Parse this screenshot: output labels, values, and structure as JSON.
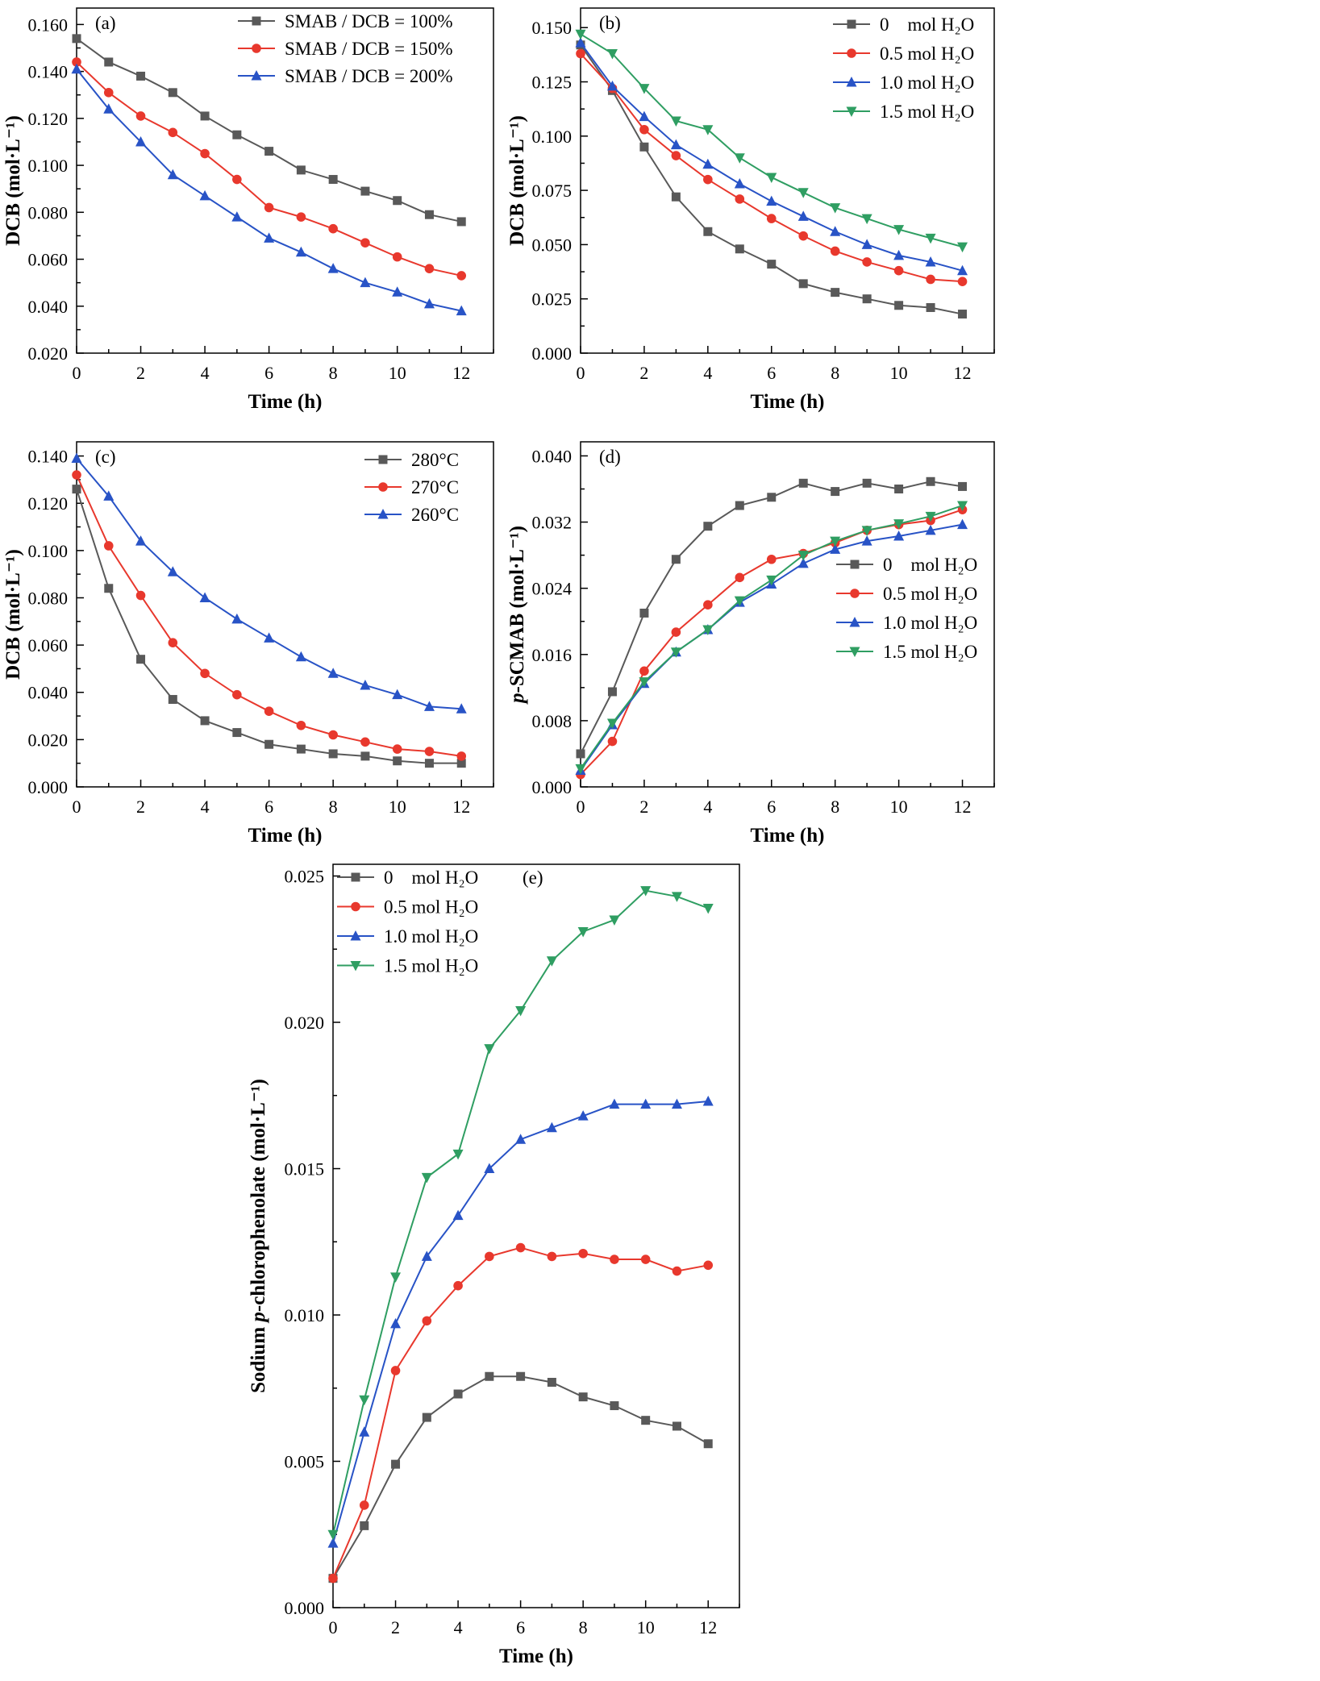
{
  "figure": {
    "background": "#ffffff",
    "text_color": "#000000"
  },
  "chart_data": [
    {
      "id": "a",
      "panel_label": "(a)",
      "type": "line",
      "title": "",
      "xlabel": "Time (h)",
      "ylabel": "DCB (mol·L⁻¹)",
      "ylabel_parts": [
        {
          "t": "DCB (mol·L⁻¹)",
          "i": false
        }
      ],
      "x": [
        0,
        1,
        2,
        3,
        4,
        5,
        6,
        7,
        8,
        9,
        10,
        11,
        12
      ],
      "xlim": [
        0,
        13
      ],
      "xticks": [
        0,
        2,
        4,
        6,
        8,
        10,
        12
      ],
      "xminor": 1,
      "ylim": [
        0.02,
        0.167
      ],
      "yticks": [
        0.02,
        0.04,
        0.06,
        0.08,
        0.1,
        0.12,
        0.14,
        0.16
      ],
      "yminor": 0.01,
      "ytick_decimals": 3,
      "grid": false,
      "legend_position": "inside-top-right",
      "series": [
        {
          "name": "SMAB / DCB = 100%",
          "color": "#595959",
          "marker": "square",
          "values": [
            0.154,
            0.144,
            0.138,
            0.131,
            0.121,
            0.113,
            0.106,
            0.098,
            0.094,
            0.089,
            0.085,
            0.079,
            0.076
          ]
        },
        {
          "name": "SMAB / DCB = 150%",
          "color": "#e8382d",
          "marker": "circle",
          "values": [
            0.144,
            0.131,
            0.121,
            0.114,
            0.105,
            0.094,
            0.082,
            0.078,
            0.073,
            0.067,
            0.061,
            0.056,
            0.053
          ]
        },
        {
          "name": "SMAB / DCB = 200%",
          "color": "#2853c6",
          "marker": "triangle-up",
          "values": [
            0.141,
            0.124,
            0.11,
            0.096,
            0.087,
            0.078,
            0.069,
            0.063,
            0.056,
            0.05,
            0.046,
            0.041,
            0.038
          ]
        }
      ]
    },
    {
      "id": "b",
      "panel_label": "(b)",
      "type": "line",
      "title": "",
      "xlabel": "Time (h)",
      "ylabel": "DCB (mol·L⁻¹)",
      "ylabel_parts": [
        {
          "t": "DCB (mol·L⁻¹)",
          "i": false
        }
      ],
      "x": [
        0,
        1,
        2,
        3,
        4,
        5,
        6,
        7,
        8,
        9,
        10,
        11,
        12
      ],
      "xlim": [
        0,
        13
      ],
      "xticks": [
        0,
        2,
        4,
        6,
        8,
        10,
        12
      ],
      "xminor": 1,
      "ylim": [
        0.0,
        0.159
      ],
      "yticks": [
        0.0,
        0.025,
        0.05,
        0.075,
        0.1,
        0.125,
        0.15
      ],
      "yminor": 0.0125,
      "ytick_decimals": 3,
      "grid": false,
      "legend_position": "inside-top-right",
      "series": [
        {
          "name": "0    mol H₂O",
          "color": "#595959",
          "marker": "square",
          "values": [
            0.142,
            0.121,
            0.095,
            0.072,
            0.056,
            0.048,
            0.041,
            0.032,
            0.028,
            0.025,
            0.022,
            0.021,
            0.018
          ]
        },
        {
          "name": "0.5 mol H₂O",
          "color": "#e8382d",
          "marker": "circle",
          "values": [
            0.138,
            0.122,
            0.103,
            0.091,
            0.08,
            0.071,
            0.062,
            0.054,
            0.047,
            0.042,
            0.038,
            0.034,
            0.033
          ]
        },
        {
          "name": "1.0 mol H₂O",
          "color": "#2853c6",
          "marker": "triangle-up",
          "values": [
            0.143,
            0.123,
            0.109,
            0.096,
            0.087,
            0.078,
            0.07,
            0.063,
            0.056,
            0.05,
            0.045,
            0.042,
            0.038
          ]
        },
        {
          "name": "1.5 mol H₂O",
          "color": "#2f9e62",
          "marker": "triangle-down",
          "values": [
            0.147,
            0.138,
            0.122,
            0.107,
            0.103,
            0.09,
            0.081,
            0.074,
            0.067,
            0.062,
            0.057,
            0.053,
            0.049
          ]
        }
      ]
    },
    {
      "id": "c",
      "panel_label": "(c)",
      "type": "line",
      "title": "",
      "xlabel": "Time (h)",
      "ylabel": "DCB (mol·L⁻¹)",
      "ylabel_parts": [
        {
          "t": "DCB (mol·L⁻¹)",
          "i": false
        }
      ],
      "x": [
        0,
        1,
        2,
        3,
        4,
        5,
        6,
        7,
        8,
        9,
        10,
        11,
        12
      ],
      "xlim": [
        0,
        13
      ],
      "xticks": [
        0,
        2,
        4,
        6,
        8,
        10,
        12
      ],
      "xminor": 1,
      "ylim": [
        0.0,
        0.146
      ],
      "yticks": [
        0.0,
        0.02,
        0.04,
        0.06,
        0.08,
        0.1,
        0.12,
        0.14
      ],
      "yminor": 0.01,
      "ytick_decimals": 3,
      "grid": false,
      "legend_position": "inside-top-right",
      "series": [
        {
          "name": "280°C",
          "color": "#595959",
          "marker": "square",
          "values": [
            0.126,
            0.084,
            0.054,
            0.037,
            0.028,
            0.023,
            0.018,
            0.016,
            0.014,
            0.013,
            0.011,
            0.01,
            0.01
          ]
        },
        {
          "name": "270°C",
          "color": "#e8382d",
          "marker": "circle",
          "values": [
            0.132,
            0.102,
            0.081,
            0.061,
            0.048,
            0.039,
            0.032,
            0.026,
            0.022,
            0.019,
            0.016,
            0.015,
            0.013
          ]
        },
        {
          "name": "260°C",
          "color": "#2853c6",
          "marker": "triangle-up",
          "values": [
            0.139,
            0.123,
            0.104,
            0.091,
            0.08,
            0.071,
            0.063,
            0.055,
            0.048,
            0.043,
            0.039,
            0.034,
            0.033
          ]
        }
      ]
    },
    {
      "id": "d",
      "panel_label": "(d)",
      "type": "line",
      "title": "",
      "xlabel": "Time (h)",
      "ylabel": "p-SCMAB (mol·L⁻¹)",
      "ylabel_parts": [
        {
          "t": "p",
          "i": true
        },
        {
          "t": "-SCMAB (mol·L⁻¹)",
          "i": false
        }
      ],
      "x": [
        0,
        1,
        2,
        3,
        4,
        5,
        6,
        7,
        8,
        9,
        10,
        11,
        12
      ],
      "xlim": [
        0,
        13
      ],
      "xticks": [
        0,
        2,
        4,
        6,
        8,
        10,
        12
      ],
      "xminor": 1,
      "ylim": [
        0.0,
        0.0417
      ],
      "yticks": [
        0.0,
        0.008,
        0.016,
        0.024,
        0.032,
        0.04
      ],
      "yminor": 0.004,
      "ytick_decimals": 3,
      "grid": false,
      "legend_position": "inside-middle-right",
      "series": [
        {
          "name": "0    mol H₂O",
          "color": "#595959",
          "marker": "square",
          "values": [
            0.004,
            0.0115,
            0.021,
            0.0275,
            0.0315,
            0.034,
            0.035,
            0.0367,
            0.0357,
            0.0367,
            0.036,
            0.0369,
            0.0363
          ]
        },
        {
          "name": "0.5 mol H₂O",
          "color": "#e8382d",
          "marker": "circle",
          "values": [
            0.0015,
            0.0055,
            0.014,
            0.0187,
            0.022,
            0.0253,
            0.0275,
            0.0282,
            0.0295,
            0.031,
            0.0317,
            0.0322,
            0.0335
          ]
        },
        {
          "name": "1.0 mol H₂O",
          "color": "#2853c6",
          "marker": "triangle-up",
          "values": [
            0.002,
            0.0075,
            0.0125,
            0.0163,
            0.019,
            0.0223,
            0.0245,
            0.027,
            0.0287,
            0.0297,
            0.0303,
            0.031,
            0.0317
          ]
        },
        {
          "name": "1.5 mol H₂O",
          "color": "#2f9e62",
          "marker": "triangle-down",
          "values": [
            0.0022,
            0.0077,
            0.0127,
            0.0163,
            0.019,
            0.0225,
            0.025,
            0.028,
            0.0297,
            0.031,
            0.0318,
            0.0327,
            0.034
          ]
        }
      ]
    },
    {
      "id": "e",
      "panel_label": "(e)",
      "type": "line",
      "title": "",
      "xlabel": "Time (h)",
      "ylabel": "Sodium p-chlorophenolate (mol·L⁻¹)",
      "ylabel_parts": [
        {
          "t": "Sodium ",
          "i": false
        },
        {
          "t": "p",
          "i": true
        },
        {
          "t": "-chlorophenolate (mol·L⁻¹)",
          "i": false
        }
      ],
      "x": [
        0,
        1,
        2,
        3,
        4,
        5,
        6,
        7,
        8,
        9,
        10,
        11,
        12
      ],
      "xlim": [
        0,
        13
      ],
      "xticks": [
        0,
        2,
        4,
        6,
        8,
        10,
        12
      ],
      "xminor": 1,
      "ylim": [
        0.0,
        0.0254
      ],
      "yticks": [
        0.0,
        0.005,
        0.01,
        0.015,
        0.02,
        0.025
      ],
      "yminor": 0.0025,
      "ytick_decimals": 3,
      "grid": false,
      "legend_position": "inside-top-left",
      "series": [
        {
          "name": "0    mol H₂O",
          "color": "#595959",
          "marker": "square",
          "values": [
            0.001,
            0.0028,
            0.0049,
            0.0065,
            0.0073,
            0.0079,
            0.0079,
            0.0077,
            0.0072,
            0.0069,
            0.0064,
            0.0062,
            0.0056
          ]
        },
        {
          "name": "0.5 mol H₂O",
          "color": "#e8382d",
          "marker": "circle",
          "values": [
            0.001,
            0.0035,
            0.0081,
            0.0098,
            0.011,
            0.012,
            0.0123,
            0.012,
            0.0121,
            0.0119,
            0.0119,
            0.0115,
            0.0117
          ]
        },
        {
          "name": "1.0 mol H₂O",
          "color": "#2853c6",
          "marker": "triangle-up",
          "values": [
            0.0022,
            0.006,
            0.0097,
            0.012,
            0.0134,
            0.015,
            0.016,
            0.0164,
            0.0168,
            0.0172,
            0.0172,
            0.0172,
            0.0173
          ]
        },
        {
          "name": "1.5 mol H₂O",
          "color": "#2f9e62",
          "marker": "triangle-down",
          "values": [
            0.0025,
            0.0071,
            0.0113,
            0.0147,
            0.0155,
            0.0191,
            0.0204,
            0.0221,
            0.0231,
            0.0235,
            0.0245,
            0.0243,
            0.0239
          ]
        }
      ]
    }
  ]
}
